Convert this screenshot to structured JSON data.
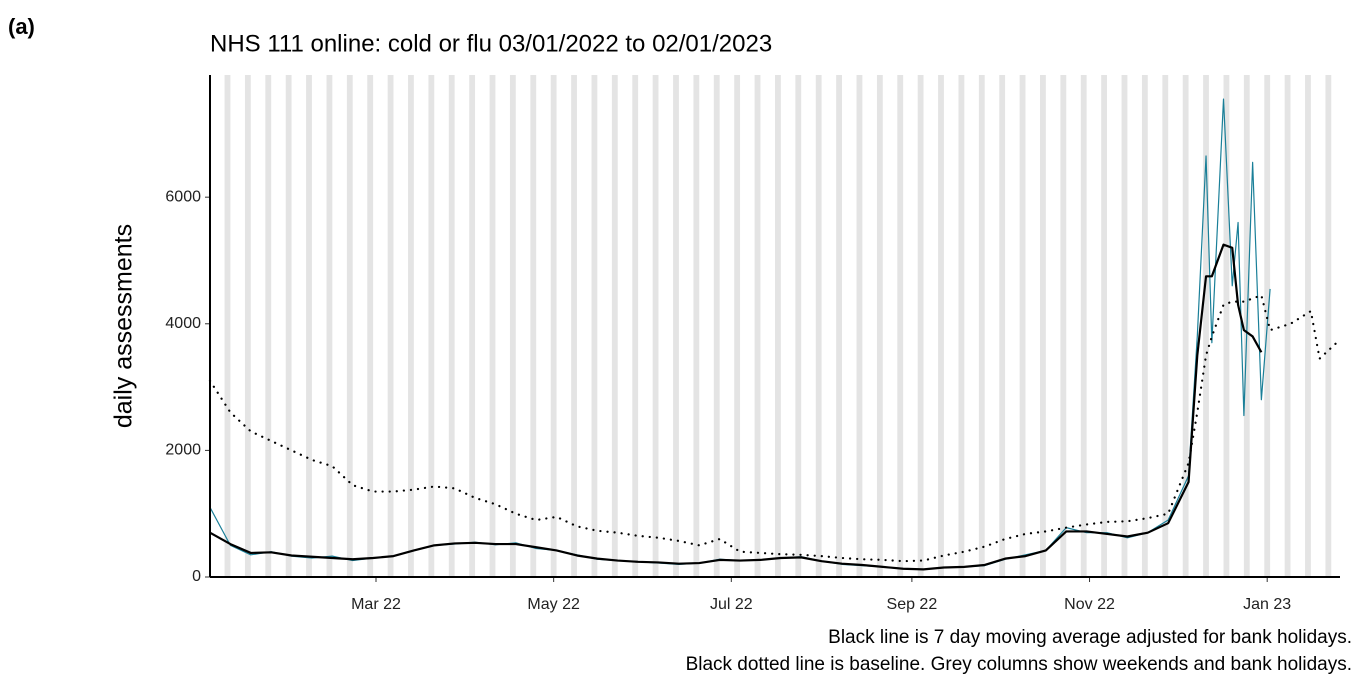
{
  "chart_data": {
    "type": "line",
    "panel": "(a)",
    "title": "NHS 111 online: cold or flu 03/01/2022 to 02/01/2023",
    "y_label": "daily assessments",
    "notes": [
      "Black line is 7 day moving average adjusted for bank holidays.",
      "Black dotted line is baseline. Grey columns show weekends and bank holidays."
    ],
    "x": [
      "2022-01-03",
      "2022-01-10",
      "2022-01-17",
      "2022-01-24",
      "2022-01-31",
      "2022-02-07",
      "2022-02-14",
      "2022-02-21",
      "2022-02-28",
      "2022-03-07",
      "2022-03-14",
      "2022-03-21",
      "2022-03-28",
      "2022-04-04",
      "2022-04-11",
      "2022-04-18",
      "2022-04-25",
      "2022-05-02",
      "2022-05-09",
      "2022-05-16",
      "2022-05-23",
      "2022-05-30",
      "2022-06-06",
      "2022-06-13",
      "2022-06-20",
      "2022-06-27",
      "2022-07-04",
      "2022-07-11",
      "2022-07-18",
      "2022-07-25",
      "2022-08-01",
      "2022-08-08",
      "2022-08-15",
      "2022-08-22",
      "2022-08-29",
      "2022-09-05",
      "2022-09-12",
      "2022-09-19",
      "2022-09-26",
      "2022-10-03",
      "2022-10-10",
      "2022-10-17",
      "2022-10-24",
      "2022-10-31",
      "2022-11-07",
      "2022-11-14",
      "2022-11-21",
      "2022-11-28",
      "2022-12-05",
      "2022-12-08",
      "2022-12-11",
      "2022-12-13",
      "2022-12-17",
      "2022-12-20",
      "2022-12-22",
      "2022-12-24",
      "2022-12-27",
      "2022-12-30",
      "2023-01-02",
      "2023-01-09",
      "2023-01-16",
      "2023-01-19",
      "2023-01-26"
    ],
    "series": [
      {
        "name": "daily assessments",
        "color": "#1a7f98",
        "style": "solid",
        "width": 1.2,
        "values": [
          1100,
          500,
          350,
          400,
          330,
          300,
          330,
          260,
          300,
          330,
          420,
          500,
          520,
          550,
          510,
          540,
          450,
          420,
          350,
          280,
          260,
          240,
          220,
          200,
          220,
          280,
          260,
          270,
          300,
          320,
          250,
          200,
          180,
          160,
          130,
          120,
          150,
          160,
          180,
          280,
          350,
          420,
          780,
          700,
          700,
          620,
          700,
          900,
          1600,
          3800,
          6650,
          3700,
          7550,
          4600,
          5600,
          2550,
          6550,
          2800,
          4550,
          null,
          null,
          null,
          null
        ]
      },
      {
        "name": "7 day moving average",
        "color": "#000000",
        "style": "solid",
        "width": 2.2,
        "values": [
          700,
          520,
          380,
          390,
          340,
          320,
          300,
          280,
          300,
          330,
          420,
          500,
          530,
          540,
          520,
          520,
          470,
          420,
          340,
          290,
          260,
          240,
          230,
          210,
          220,
          270,
          260,
          270,
          300,
          310,
          250,
          210,
          190,
          160,
          130,
          120,
          150,
          160,
          190,
          290,
          330,
          420,
          720,
          720,
          680,
          640,
          700,
          850,
          1500,
          3500,
          4750,
          4750,
          5250,
          5200,
          4300,
          3900,
          3800,
          3550,
          null,
          null,
          null,
          null,
          null
        ]
      },
      {
        "name": "baseline",
        "color": "#000000",
        "style": "dotted",
        "width": 2.2,
        "values": [
          3100,
          2600,
          2300,
          2150,
          2000,
          1850,
          1750,
          1450,
          1350,
          1350,
          1380,
          1430,
          1400,
          1250,
          1150,
          1000,
          900,
          950,
          800,
          730,
          700,
          650,
          620,
          570,
          500,
          600,
          400,
          380,
          360,
          350,
          330,
          300,
          280,
          270,
          250,
          260,
          340,
          400,
          480,
          600,
          680,
          720,
          780,
          830,
          870,
          880,
          930,
          1000,
          1800,
          2600,
          3500,
          3800,
          4300,
          4350,
          4350,
          4350,
          4400,
          4450,
          3900,
          4000,
          4200,
          3450,
          3750
        ]
      }
    ],
    "xlim": [
      "2022-01-03",
      "2023-01-26"
    ],
    "xticks": [
      {
        "value": "2022-03-01",
        "label": "Mar 22"
      },
      {
        "value": "2022-05-01",
        "label": "May 22"
      },
      {
        "value": "2022-07-01",
        "label": "Jul 22"
      },
      {
        "value": "2022-09-01",
        "label": "Sep 22"
      },
      {
        "value": "2022-11-01",
        "label": "Nov 22"
      },
      {
        "value": "2023-01-01",
        "label": "Jan 23"
      }
    ],
    "ylim": [
      0,
      7930
    ],
    "yticks": [
      0,
      2000,
      4000,
      6000
    ],
    "weekend_columns": true
  }
}
